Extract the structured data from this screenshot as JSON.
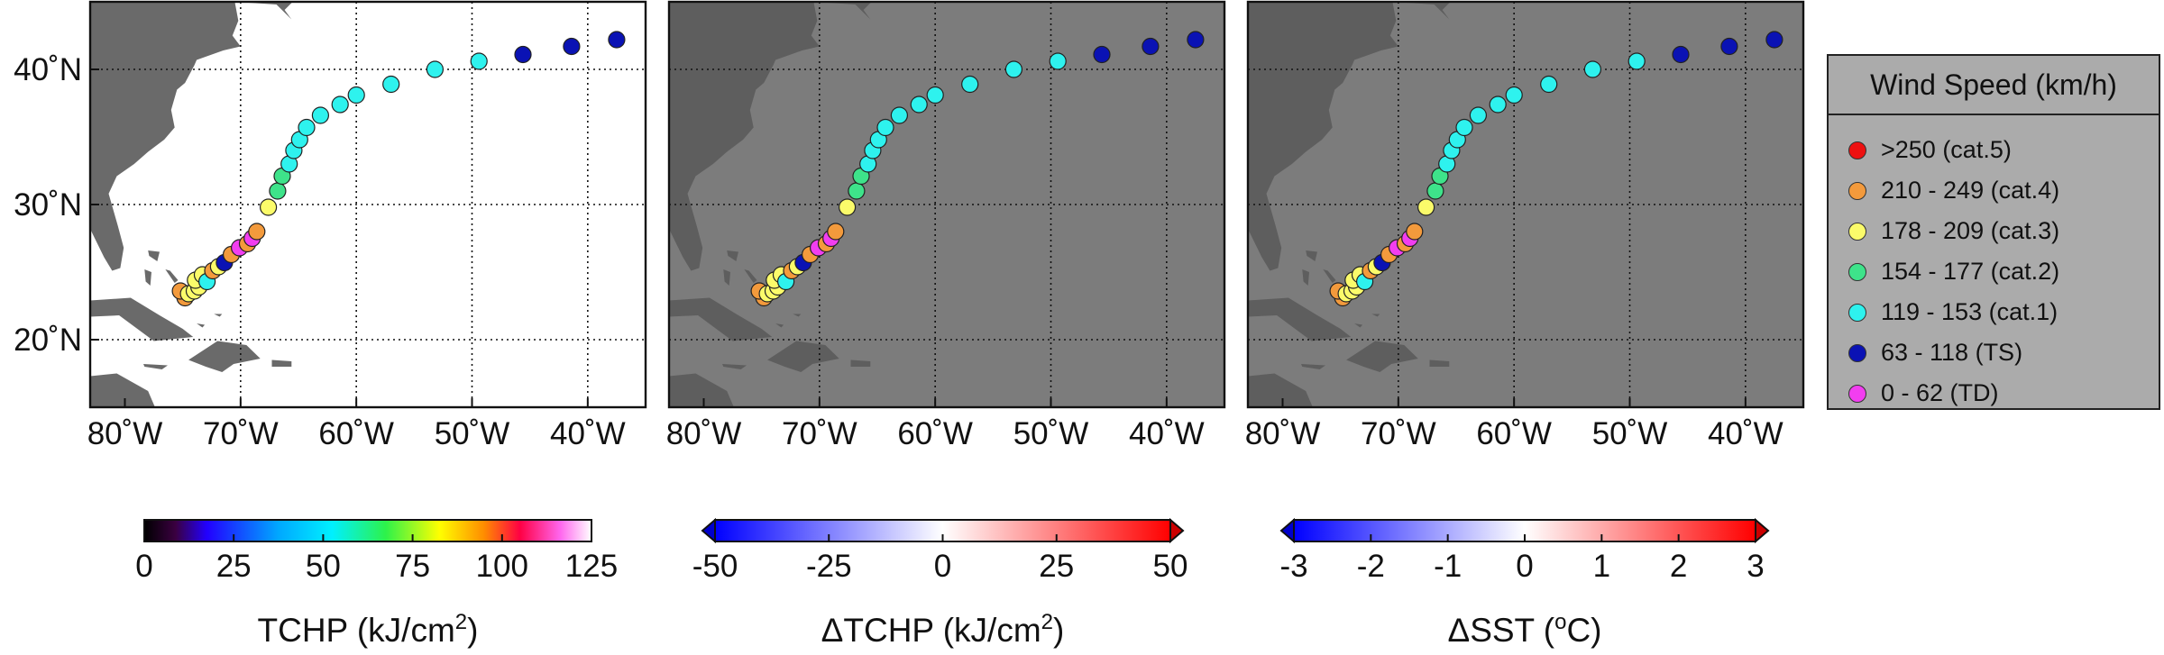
{
  "chart_data": [
    {
      "type": "scatter",
      "title": "",
      "xlabel": "",
      "ylabel": "",
      "map_background": "white-ocean",
      "xlim": [
        -83,
        -35
      ],
      "ylim": [
        15,
        45
      ],
      "x_ticks": [
        "80˚W",
        "70˚W",
        "60˚W",
        "50˚W",
        "40˚W"
      ],
      "y_ticks": [
        "20˚N",
        "30˚N",
        "40˚N"
      ],
      "grid": true,
      "colorbar": {
        "label": "TCHP (kJ/cm",
        "superscript": "2",
        "suffix": ")",
        "ticks": [
          "0",
          "25",
          "50",
          "75",
          "100",
          "125"
        ],
        "extend": "none"
      }
    },
    {
      "type": "scatter",
      "title": "",
      "xlabel": "",
      "ylabel": "",
      "map_background": "gray-ocean",
      "xlim": [
        -83,
        -35
      ],
      "ylim": [
        15,
        45
      ],
      "x_ticks": [
        "80˚W",
        "70˚W",
        "60˚W",
        "50˚W",
        "40˚W"
      ],
      "y_ticks": [],
      "grid": true,
      "colorbar": {
        "label": "ΔTCHP (kJ/cm",
        "superscript": "2",
        "suffix": ")",
        "ticks": [
          "-50",
          "-25",
          "0",
          "25",
          "50"
        ],
        "extend": "both"
      }
    },
    {
      "type": "scatter",
      "title": "",
      "xlabel": "",
      "ylabel": "",
      "map_background": "gray-ocean",
      "xlim": [
        -83,
        -35
      ],
      "ylim": [
        15,
        45
      ],
      "x_ticks": [
        "80˚W",
        "70˚W",
        "60˚W",
        "50˚W",
        "40˚W"
      ],
      "y_ticks": [],
      "grid": true,
      "colorbar": {
        "label": "ΔSST (",
        "superscript": "o",
        "suffix": "C)",
        "ticks": [
          "-3",
          "-2",
          "-1",
          "0",
          "1",
          "2",
          "3"
        ],
        "extend": "both"
      }
    }
  ],
  "track": [
    {
      "lon": -74.8,
      "lat": 23.1,
      "cat": "cat.4"
    },
    {
      "lon": -75.2,
      "lat": 23.6,
      "cat": "cat.4"
    },
    {
      "lon": -74.5,
      "lat": 23.4,
      "cat": "cat.3"
    },
    {
      "lon": -74.0,
      "lat": 23.6,
      "cat": "cat.3"
    },
    {
      "lon": -73.6,
      "lat": 23.9,
      "cat": "cat.3"
    },
    {
      "lon": -73.9,
      "lat": 24.4,
      "cat": "cat.3"
    },
    {
      "lon": -73.3,
      "lat": 24.8,
      "cat": "cat.3"
    },
    {
      "lon": -72.9,
      "lat": 24.3,
      "cat": "cat.1"
    },
    {
      "lon": -72.4,
      "lat": 25.1,
      "cat": "cat.4"
    },
    {
      "lon": -71.9,
      "lat": 25.4,
      "cat": "cat.3"
    },
    {
      "lon": -71.4,
      "lat": 25.7,
      "cat": "TS"
    },
    {
      "lon": -70.8,
      "lat": 26.3,
      "cat": "cat.4"
    },
    {
      "lon": -70.1,
      "lat": 26.8,
      "cat": "TD"
    },
    {
      "lon": -69.4,
      "lat": 27.1,
      "cat": "cat.4"
    },
    {
      "lon": -69.0,
      "lat": 27.5,
      "cat": "TD"
    },
    {
      "lon": -68.6,
      "lat": 28.0,
      "cat": "cat.4"
    },
    {
      "lon": -67.6,
      "lat": 29.8,
      "cat": "cat.3"
    },
    {
      "lon": -66.8,
      "lat": 31.0,
      "cat": "cat.2"
    },
    {
      "lon": -66.4,
      "lat": 32.1,
      "cat": "cat.2"
    },
    {
      "lon": -65.8,
      "lat": 33.0,
      "cat": "cat.1"
    },
    {
      "lon": -65.4,
      "lat": 34.0,
      "cat": "cat.1"
    },
    {
      "lon": -64.9,
      "lat": 34.8,
      "cat": "cat.1"
    },
    {
      "lon": -64.3,
      "lat": 35.7,
      "cat": "cat.1"
    },
    {
      "lon": -63.1,
      "lat": 36.6,
      "cat": "cat.1"
    },
    {
      "lon": -61.4,
      "lat": 37.4,
      "cat": "cat.1"
    },
    {
      "lon": -60.0,
      "lat": 38.1,
      "cat": "cat.1"
    },
    {
      "lon": -57.0,
      "lat": 38.9,
      "cat": "cat.1"
    },
    {
      "lon": -53.2,
      "lat": 40.0,
      "cat": "cat.1"
    },
    {
      "lon": -49.4,
      "lat": 40.6,
      "cat": "cat.1"
    },
    {
      "lon": -45.6,
      "lat": 41.1,
      "cat": "TS"
    },
    {
      "lon": -41.4,
      "lat": 41.7,
      "cat": "TS"
    },
    {
      "lon": -37.5,
      "lat": 42.2,
      "cat": "TS"
    }
  ],
  "legend": {
    "title": "Wind Speed (km/h)",
    "items": [
      {
        "key": "cat.5",
        "label": ">250 (cat.5)",
        "color": "#ee1111"
      },
      {
        "key": "cat.4",
        "label": "210 - 249 (cat.4)",
        "color": "#f39a3c"
      },
      {
        "key": "cat.3",
        "label": "178 - 209 (cat.3)",
        "color": "#fbfb6a"
      },
      {
        "key": "cat.2",
        "label": "154 - 177 (cat.2)",
        "color": "#3ee38a"
      },
      {
        "key": "cat.1",
        "label": "119 - 153 (cat.1)",
        "color": "#2ef2ee"
      },
      {
        "key": "TS",
        "label": "63 - 118 (TS)",
        "color": "#0a12b4"
      },
      {
        "key": "TD",
        "label": "0 - 62 (TD)",
        "color": "#f23ef0"
      }
    ]
  }
}
